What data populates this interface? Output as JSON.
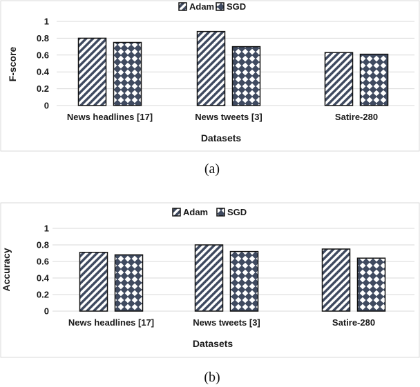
{
  "colors": {
    "pattern_dark": "#3f4a60",
    "pattern_light": "#ffffff",
    "grid": "#d9d9d9"
  },
  "chart_data": [
    {
      "type": "bar",
      "caption": "(a)",
      "categories": [
        "News headlines [17]",
        "News tweets [3]",
        "Satire-280"
      ],
      "series": [
        {
          "name": "Adam",
          "pattern": "diagonal-stripes",
          "values": [
            0.8,
            0.88,
            0.63
          ]
        },
        {
          "name": "SGD",
          "pattern": "checker-diamonds",
          "values": [
            0.75,
            0.7,
            0.61
          ]
        }
      ],
      "xlabel": "Datasets",
      "ylabel": "F-score",
      "ylim": [
        0,
        1
      ],
      "yticks": [
        "0",
        "0.2",
        "0.4",
        "0.6",
        "0.8",
        "1"
      ],
      "grid": true,
      "legend": "top-center"
    },
    {
      "type": "bar",
      "caption": "(b)",
      "categories": [
        "News headlines [17]",
        "News tweets [3]",
        "Satire-280"
      ],
      "series": [
        {
          "name": "Adam",
          "pattern": "diagonal-stripes",
          "values": [
            0.71,
            0.8,
            0.75
          ]
        },
        {
          "name": "SGD",
          "pattern": "checker-diamonds",
          "values": [
            0.68,
            0.72,
            0.64
          ]
        }
      ],
      "xlabel": "Datasets",
      "ylabel": "Accuracy",
      "ylim": [
        0,
        1
      ],
      "yticks": [
        "0",
        "0.2",
        "0.4",
        "0.6",
        "0.8",
        "1"
      ],
      "grid": true,
      "legend": "top-center"
    }
  ]
}
